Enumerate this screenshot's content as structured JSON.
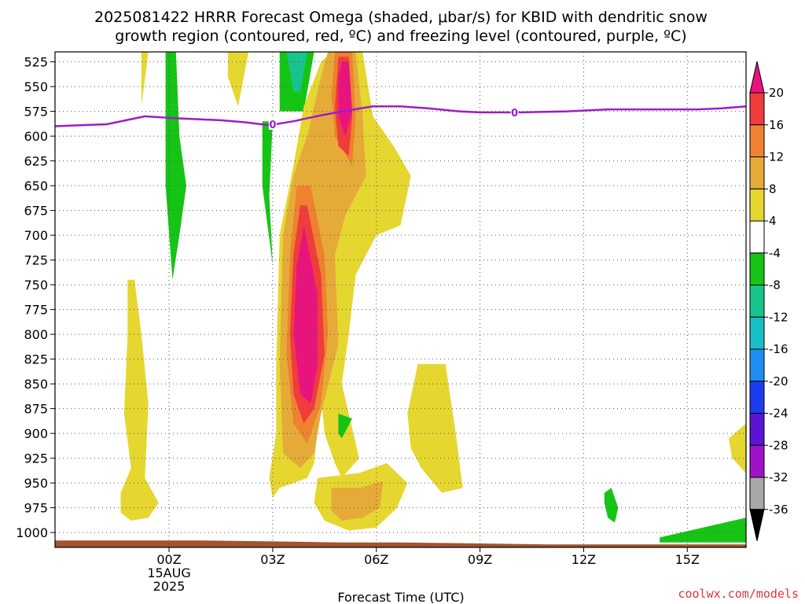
{
  "header": {
    "title_line1": "2025081422 HRRR Forecast Omega (shaded, μbar/s) for KBID with dendritic snow",
    "title_line2": "growth region (contoured, red, ºC) and freezing level (contoured, purple, ºC)"
  },
  "footer": {
    "credit": "coolwx.com/models"
  },
  "chart_data": {
    "type": "heatmap",
    "title": "2025081422 HRRR Forecast Omega (shaded, μbar/s) for KBID with dendritic snow growth region (contoured, red, ºC) and freezing level (contoured, purple, ºC)",
    "xlabel": "Forecast Time (UTC)",
    "x_range_hours": [
      -3.3,
      16.7
    ],
    "x_ticks": [
      {
        "hour": 0,
        "lines": [
          "00Z",
          "15AUG",
          "2025"
        ]
      },
      {
        "hour": 3,
        "lines": [
          "03Z"
        ]
      },
      {
        "hour": 6,
        "lines": [
          "06Z"
        ]
      },
      {
        "hour": 9,
        "lines": [
          "09Z"
        ]
      },
      {
        "hour": 12,
        "lines": [
          "12Z"
        ]
      },
      {
        "hour": 15,
        "lines": [
          "15Z"
        ]
      }
    ],
    "y_label": "",
    "y_range_hpa": [
      515,
      1015
    ],
    "y_ticks": [
      525,
      550,
      575,
      600,
      625,
      650,
      675,
      700,
      725,
      750,
      775,
      800,
      825,
      850,
      875,
      900,
      925,
      950,
      975,
      1000
    ],
    "grid": true,
    "colorbar": {
      "labels": [
        "20",
        "16",
        "12",
        "8",
        "4",
        "-4",
        "-8",
        "-12",
        "-16",
        "-20",
        "-24",
        "-28",
        "-32",
        "-36"
      ],
      "colors": [
        "#e8147e",
        "#f03c3c",
        "#ee8230",
        "#e6aa38",
        "#e6d630",
        "#ffffff",
        "#16c416",
        "#19c48c",
        "#19bdc4",
        "#1e8ef0",
        "#1e3cee",
        "#5a14d4",
        "#a012c8",
        "#a8a8a8",
        "#000000"
      ]
    },
    "omega_regions": [
      {
        "level": "4",
        "color": "#e6d630",
        "points": [
          [
            -0.8,
            515
          ],
          [
            -0.6,
            515
          ],
          [
            -0.8,
            570
          ]
        ]
      },
      {
        "level": "4",
        "color": "#e6d630",
        "points": [
          [
            -1.2,
            745
          ],
          [
            -1.0,
            745
          ],
          [
            -0.8,
            800
          ],
          [
            -0.6,
            870
          ],
          [
            -0.7,
            945
          ],
          [
            -0.3,
            970
          ],
          [
            -0.6,
            985
          ],
          [
            -1.1,
            988
          ],
          [
            -1.4,
            980
          ],
          [
            -1.4,
            960
          ],
          [
            -1.1,
            935
          ],
          [
            -1.3,
            880
          ],
          [
            -1.2,
            800
          ]
        ]
      },
      {
        "level": "4",
        "color": "#e6d630",
        "points": [
          [
            1.7,
            515
          ],
          [
            2.3,
            515
          ],
          [
            2.0,
            570
          ],
          [
            1.7,
            540
          ]
        ]
      },
      {
        "level": "-4",
        "color": "#16c416",
        "points": [
          [
            -0.1,
            515
          ],
          [
            0.2,
            515
          ],
          [
            0.3,
            600
          ],
          [
            0.5,
            650
          ],
          [
            0.3,
            700
          ],
          [
            0.1,
            745
          ],
          [
            -0.1,
            650
          ]
        ]
      },
      {
        "level": "-4",
        "color": "#16c416",
        "points": [
          [
            2.7,
            585
          ],
          [
            3.0,
            585
          ],
          [
            2.9,
            660
          ],
          [
            3.0,
            730
          ],
          [
            2.7,
            650
          ]
        ]
      },
      {
        "level": "-4",
        "color": "#16c416",
        "points": [
          [
            3.2,
            515
          ],
          [
            4.2,
            515
          ],
          [
            3.9,
            575
          ],
          [
            3.2,
            575
          ]
        ]
      },
      {
        "level": "-8",
        "color": "#19c48c",
        "points": [
          [
            3.4,
            515
          ],
          [
            4.0,
            515
          ],
          [
            3.8,
            555
          ],
          [
            3.6,
            555
          ]
        ]
      },
      {
        "level": "4",
        "color": "#e6d630",
        "points": [
          [
            4.7,
            515
          ],
          [
            5.6,
            515
          ],
          [
            5.9,
            580
          ],
          [
            6.5,
            610
          ],
          [
            7.0,
            640
          ],
          [
            6.7,
            690
          ],
          [
            6.0,
            700
          ],
          [
            5.4,
            740
          ],
          [
            5.2,
            800
          ],
          [
            5.0,
            850
          ],
          [
            5.5,
            925
          ],
          [
            5.0,
            945
          ],
          [
            4.8,
            930
          ],
          [
            4.5,
            900
          ],
          [
            4.4,
            860
          ],
          [
            4.2,
            930
          ],
          [
            4.0,
            945
          ],
          [
            3.2,
            955
          ],
          [
            3.0,
            965
          ],
          [
            2.9,
            945
          ],
          [
            3.1,
            900
          ],
          [
            3.1,
            830
          ],
          [
            3.2,
            700
          ],
          [
            3.6,
            630
          ],
          [
            3.9,
            570
          ],
          [
            4.4,
            525
          ]
        ]
      },
      {
        "level": "8",
        "color": "#e6aa38",
        "points": [
          [
            4.6,
            515
          ],
          [
            5.4,
            515
          ],
          [
            5.6,
            580
          ],
          [
            5.7,
            640
          ],
          [
            5.1,
            680
          ],
          [
            4.8,
            720
          ],
          [
            4.9,
            810
          ],
          [
            4.4,
            880
          ],
          [
            4.2,
            920
          ],
          [
            3.8,
            935
          ],
          [
            3.3,
            920
          ],
          [
            3.2,
            830
          ],
          [
            3.3,
            700
          ],
          [
            3.6,
            640
          ],
          [
            4.0,
            600
          ],
          [
            4.4,
            540
          ]
        ]
      },
      {
        "level": "12",
        "color": "#ee8230",
        "points": [
          [
            4.8,
            515
          ],
          [
            5.3,
            515
          ],
          [
            5.4,
            580
          ],
          [
            5.3,
            630
          ],
          [
            4.8,
            600
          ],
          [
            4.7,
            560
          ]
        ]
      },
      {
        "level": "12",
        "color": "#ee8230",
        "points": [
          [
            3.7,
            650
          ],
          [
            4.1,
            650
          ],
          [
            4.5,
            720
          ],
          [
            4.6,
            800
          ],
          [
            4.4,
            870
          ],
          [
            4.0,
            910
          ],
          [
            3.6,
            890
          ],
          [
            3.4,
            820
          ],
          [
            3.5,
            720
          ]
        ]
      },
      {
        "level": "16",
        "color": "#f03c3c",
        "points": [
          [
            4.9,
            520
          ],
          [
            5.2,
            520
          ],
          [
            5.3,
            580
          ],
          [
            5.2,
            620
          ],
          [
            4.9,
            610
          ],
          [
            4.8,
            570
          ]
        ]
      },
      {
        "level": "16",
        "color": "#f03c3c",
        "points": [
          [
            3.8,
            670
          ],
          [
            4.0,
            670
          ],
          [
            4.4,
            740
          ],
          [
            4.5,
            820
          ],
          [
            4.2,
            875
          ],
          [
            3.9,
            890
          ],
          [
            3.6,
            860
          ],
          [
            3.5,
            800
          ],
          [
            3.6,
            720
          ]
        ]
      },
      {
        "level": "20",
        "color": "#e8147e",
        "points": [
          [
            5.0,
            525
          ],
          [
            5.2,
            525
          ],
          [
            5.3,
            575
          ],
          [
            5.1,
            600
          ],
          [
            4.9,
            580
          ],
          [
            4.9,
            540
          ]
        ]
      },
      {
        "level": "20",
        "color": "#e8147e",
        "points": [
          [
            3.9,
            690
          ],
          [
            4.3,
            760
          ],
          [
            4.3,
            830
          ],
          [
            4.1,
            870
          ],
          [
            3.8,
            860
          ],
          [
            3.6,
            800
          ],
          [
            3.7,
            730
          ]
        ]
      },
      {
        "level": "-4",
        "color": "#16c416",
        "points": [
          [
            4.9,
            880
          ],
          [
            5.3,
            885
          ],
          [
            5.0,
            905
          ],
          [
            4.9,
            900
          ]
        ]
      },
      {
        "level": "4",
        "color": "#e6d630",
        "points": [
          [
            7.2,
            830
          ],
          [
            8.0,
            830
          ],
          [
            8.3,
            900
          ],
          [
            8.5,
            955
          ],
          [
            7.9,
            960
          ],
          [
            7.3,
            935
          ],
          [
            7.0,
            915
          ],
          [
            6.9,
            880
          ]
        ]
      },
      {
        "level": "4",
        "color": "#e6d630",
        "points": [
          [
            4.3,
            945
          ],
          [
            5.5,
            940
          ],
          [
            6.3,
            930
          ],
          [
            6.9,
            950
          ],
          [
            6.6,
            975
          ],
          [
            6.0,
            995
          ],
          [
            5.2,
            998
          ],
          [
            4.5,
            988
          ],
          [
            4.2,
            970
          ]
        ]
      },
      {
        "level": "8",
        "color": "#e6aa38",
        "points": [
          [
            4.7,
            955
          ],
          [
            5.5,
            955
          ],
          [
            6.2,
            948
          ],
          [
            6.1,
            975
          ],
          [
            5.6,
            985
          ],
          [
            5.0,
            988
          ],
          [
            4.7,
            978
          ]
        ]
      },
      {
        "level": "-4",
        "color": "#16c416",
        "points": [
          [
            12.6,
            960
          ],
          [
            12.8,
            955
          ],
          [
            13.0,
            975
          ],
          [
            12.9,
            990
          ],
          [
            12.7,
            985
          ],
          [
            12.6,
            970
          ]
        ]
      },
      {
        "level": "-4",
        "color": "#16c416",
        "points": [
          [
            14.2,
            1005
          ],
          [
            16.7,
            985
          ],
          [
            16.7,
            1010
          ],
          [
            14.2,
            1010
          ]
        ]
      },
      {
        "level": "4",
        "color": "#e6d630",
        "points": [
          [
            16.7,
            890
          ],
          [
            16.7,
            940
          ],
          [
            16.3,
            925
          ],
          [
            16.2,
            905
          ]
        ]
      }
    ],
    "freezing_level": {
      "label": "0",
      "color": "#9d1ccc",
      "points": [
        [
          -3.3,
          590
        ],
        [
          -1.8,
          588
        ],
        [
          -0.7,
          580
        ],
        [
          0.2,
          582
        ],
        [
          1.5,
          584
        ],
        [
          2.2,
          586
        ],
        [
          2.9,
          589
        ],
        [
          3.6,
          585
        ],
        [
          4.4,
          579
        ],
        [
          5.2,
          574
        ],
        [
          5.9,
          570
        ],
        [
          6.7,
          570
        ],
        [
          7.5,
          572
        ],
        [
          8.4,
          575
        ],
        [
          9.0,
          576
        ],
        [
          10.2,
          576
        ],
        [
          11.5,
          575
        ],
        [
          12.7,
          573
        ],
        [
          14.0,
          573
        ],
        [
          15.3,
          573
        ],
        [
          16.0,
          572
        ],
        [
          16.7,
          570
        ]
      ],
      "label_points": [
        [
          3.0,
          588
        ],
        [
          10.0,
          576
        ]
      ]
    },
    "terrain": {
      "color": "#a2542e",
      "points": [
        [
          -3.3,
          1008
        ],
        [
          1.0,
          1008
        ],
        [
          3.0,
          1009
        ],
        [
          5.0,
          1010
        ],
        [
          6.5,
          1010
        ],
        [
          9.0,
          1011
        ],
        [
          11.0,
          1012
        ],
        [
          13.0,
          1012
        ],
        [
          16.7,
          1012
        ],
        [
          16.7,
          1015
        ],
        [
          -3.3,
          1015
        ]
      ]
    }
  }
}
